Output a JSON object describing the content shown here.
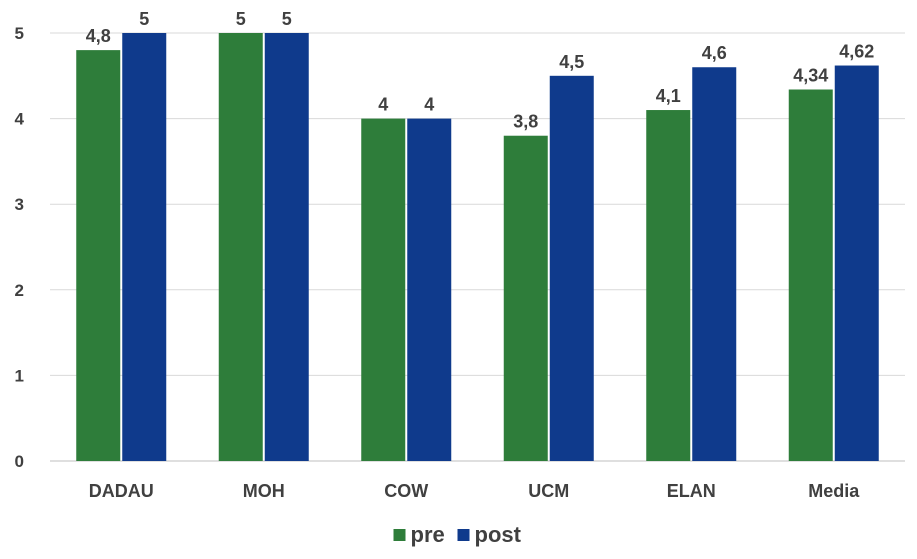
{
  "chart_data": {
    "type": "bar",
    "categories": [
      "DADAU",
      "MOH",
      "COW",
      "UCM",
      "ELAN",
      "Media"
    ],
    "series": [
      {
        "name": "pre",
        "color": "#2e7d3a",
        "values": [
          4.8,
          5,
          4,
          3.8,
          4.1,
          4.34
        ],
        "labels": [
          "4,8",
          "5",
          "4",
          "3,8",
          "4,1",
          "4,34"
        ]
      },
      {
        "name": "post",
        "color": "#0f3a8c",
        "values": [
          5,
          5,
          4,
          4.5,
          4.6,
          4.62
        ],
        "labels": [
          "5",
          "5",
          "4",
          "4,5",
          "4,6",
          "4,62"
        ]
      }
    ],
    "ylim": [
      0,
      5
    ],
    "yticks": [
      "0",
      "1",
      "2",
      "3",
      "4",
      "5"
    ],
    "grid": true,
    "gridColor": "#d9d9d9",
    "legend_position": "bottom",
    "title": "",
    "xlabel": "",
    "ylabel": ""
  }
}
